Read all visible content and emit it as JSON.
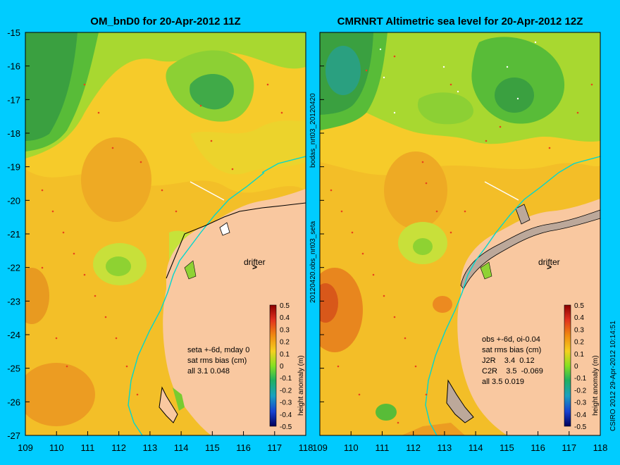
{
  "panels": [
    {
      "title": "OM_bnD0 for 20-Apr-2012 11Z",
      "drifter_label": "drifter",
      "stats": [
        "seta +-6d, mday 0",
        "sat rms bias (cm)",
        "all 3.1  0.048"
      ]
    },
    {
      "title": "CMRNRT Altimetric sea level  for 20-Apr-2012 12Z",
      "drifter_label": "drifter",
      "stats": [
        "obs +-6d, oi-0.04",
        "sat rms bias (cm)",
        "J2R    3.4  0.12",
        "C2R    3.5  -0.069",
        "all 3.5  0.019"
      ]
    }
  ],
  "y_ticks": [
    "-15",
    "-16",
    "-17",
    "-18",
    "-19",
    "-20",
    "-21",
    "-22",
    "-23",
    "-24",
    "-25",
    "-26",
    "-27"
  ],
  "x_ticks_left": [
    "109",
    "110",
    "111",
    "112",
    "113",
    "114",
    "115",
    "116",
    "117",
    "118"
  ],
  "x_ticks_right": [
    "109",
    "110",
    "111",
    "112",
    "113",
    "114",
    "115",
    "116",
    "117",
    "118"
  ],
  "colorbar": {
    "label": "height anomaly (m)",
    "ticks": [
      "0.5",
      "0.4",
      "0.3",
      "0.2",
      "0.1",
      "0",
      "-0.1",
      "-0.2",
      "-0.3",
      "-0.4",
      "-0.5"
    ]
  },
  "side_labels": {
    "top": "bodas_nrt03_20120420",
    "middle": "20120420.obs_nrt03_seta",
    "bottom": "CSIRO 2012   29-Apr-2012 10:14:51"
  },
  "colors": {
    "background": "#00ccff",
    "land": "#f9c8a0",
    "coast_line": "#00d7ce"
  }
}
